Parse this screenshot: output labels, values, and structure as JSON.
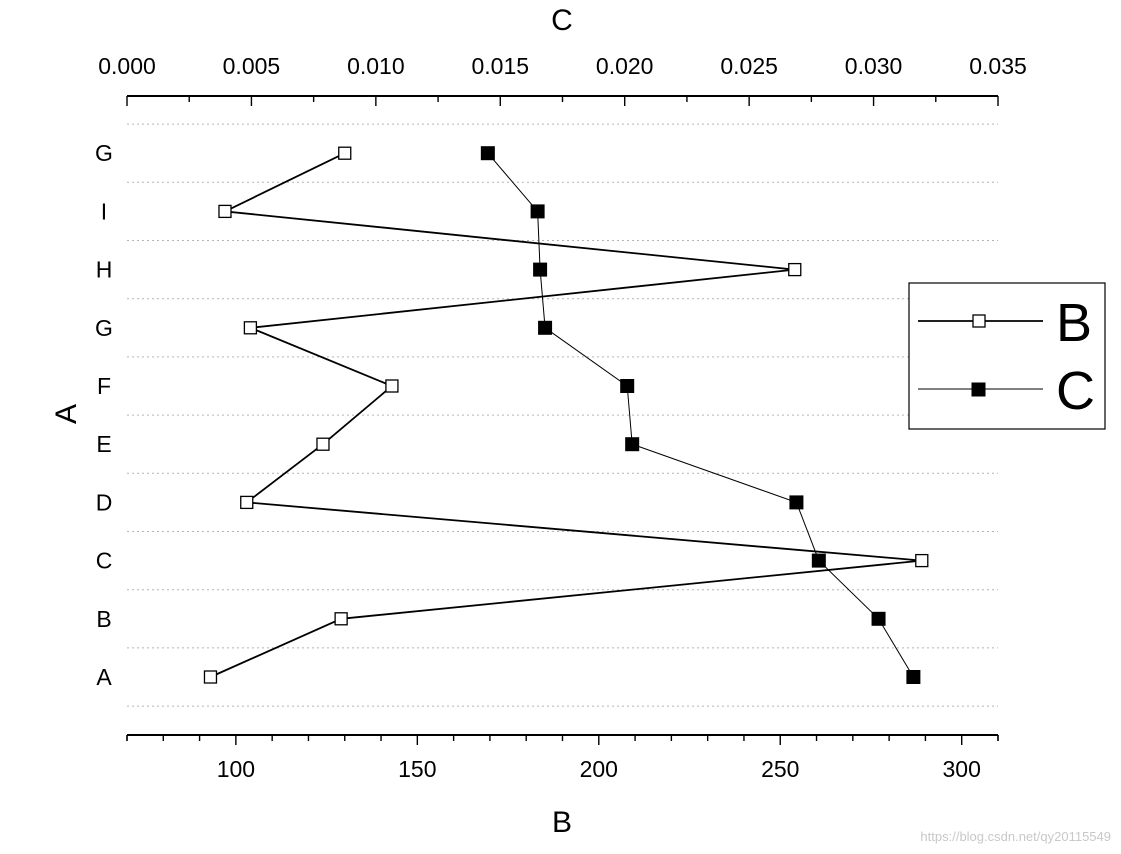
{
  "chart_data": {
    "type": "line",
    "categories": [
      "A",
      "B",
      "C",
      "D",
      "E",
      "F",
      "G",
      "H",
      "I",
      "G"
    ],
    "series": [
      {
        "name": "B",
        "axis": "bottom",
        "marker": "open-square",
        "values": [
          93,
          129,
          289,
          103,
          124,
          143,
          104,
          254,
          97,
          130
        ]
      },
      {
        "name": "C",
        "axis": "top",
        "marker": "filled-square",
        "values": [
          0.0316,
          0.0302,
          0.0278,
          0.0269,
          0.0203,
          0.0201,
          0.0168,
          0.0166,
          0.0165,
          0.0145
        ]
      }
    ],
    "bottom_axis": {
      "label": "B",
      "lim": [
        70,
        310
      ],
      "ticks": [
        100,
        150,
        200,
        250,
        300
      ],
      "tick_labels": [
        "100",
        "150",
        "200",
        "250",
        "300"
      ]
    },
    "top_axis": {
      "label": "C",
      "lim": [
        0.0,
        0.035
      ],
      "ticks": [
        0.0,
        0.005,
        0.01,
        0.015,
        0.02,
        0.025,
        0.03,
        0.035
      ],
      "tick_labels": [
        "0.000",
        "0.005",
        "0.010",
        "0.015",
        "0.020",
        "0.025",
        "0.030",
        "0.035"
      ]
    },
    "y_axis": {
      "label": "A"
    },
    "grid": "horizontal dotted",
    "legend": {
      "placement": "right",
      "entries": [
        "B",
        "C"
      ]
    }
  },
  "watermark": "https://blog.csdn.net/qy20115549",
  "colors": {
    "line": "#000000",
    "grid": "#b4b4b4",
    "open_marker_fill": "#ffffff",
    "filled_marker_fill": "#000000"
  }
}
